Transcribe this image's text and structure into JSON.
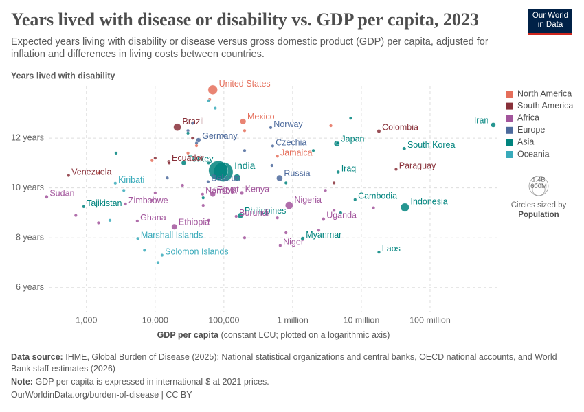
{
  "chart_data": {
    "type": "scatter",
    "title": "Years lived with disease or disability vs. GDP per capita, 2023",
    "subtitle": "Expected years living with disability or disease versus gross domestic product (GDP) per capita, adjusted for inflation and differences in living costs between countries.",
    "y_label": "Years lived with disability",
    "x_label": "GDP per capita",
    "x_label_note": "(constant LCU; plotted on a logarithmic axis)",
    "log_x": true,
    "grid": true,
    "legend_position": "right",
    "xlim": [
      290,
      1000000000
    ],
    "xticks": [
      {
        "value": 1000,
        "label": "1,000"
      },
      {
        "value": 10000,
        "label": "10,000"
      },
      {
        "value": 100000,
        "label": "100,000"
      },
      {
        "value": 1000000,
        "label": "1 million"
      },
      {
        "value": 10000000,
        "label": "10 million"
      },
      {
        "value": 100000000,
        "label": "100 million"
      }
    ],
    "ylim": [
      5,
      14.1
    ],
    "yticks": [
      {
        "value": 6,
        "label": "6 years"
      },
      {
        "value": 8,
        "label": "8 years"
      },
      {
        "value": 10,
        "label": "10 years"
      },
      {
        "value": 12,
        "label": "12 years"
      }
    ],
    "size_legend": [
      {
        "value": 1400000000,
        "label": "1.4B"
      },
      {
        "value": 600000000,
        "label": "600M"
      }
    ],
    "size_legend_title": "Circles sized by",
    "size_variable": "Population",
    "series": [
      {
        "name": "North America",
        "color": "#e56e5a",
        "x": [
          69000,
          190000,
          600000,
          62000,
          40000,
          30000,
          200000,
          9000,
          3600000,
          1500
        ],
        "values": [
          13.94,
          12.67,
          11.28,
          13.55,
          11.7,
          11.4,
          12.3,
          11.1,
          12.5,
          10.6
        ],
        "sizes": [
          340000000,
          130000000,
          2800000,
          40000000,
          3000000,
          6000000,
          5000000,
          10000000,
          1000000,
          11000000
        ],
        "labels": [
          "United States",
          "Mexico",
          "Jamaica",
          null,
          null,
          null,
          null,
          null,
          null,
          null
        ]
      },
      {
        "name": "South America",
        "color": "#883039",
        "x": [
          21000,
          18000000,
          15800,
          550,
          32000000,
          35000,
          4000000,
          16000,
          10000
        ],
        "values": [
          12.44,
          12.28,
          11.06,
          10.5,
          10.75,
          12.0,
          10.2,
          11.0,
          11.2
        ],
        "sizes": [
          216000000,
          52000000,
          18000000,
          28000000,
          6800000,
          10000000,
          5000000,
          3000000,
          10000000
        ],
        "labels": [
          "Brazil",
          "Colombia",
          "Ecuador",
          "Venezuela",
          "Paraguay",
          null,
          null,
          null,
          null
        ]
      },
      {
        "name": "Africa",
        "color": "#a2559c",
        "x": [
          263,
          3700,
          49000,
          69000,
          182000,
          890000,
          5500,
          19000,
          151000,
          2800000,
          660000,
          10000,
          50000,
          3000000,
          700,
          1500,
          25000,
          600000,
          2400000,
          60000,
          200000,
          800000,
          9000,
          15000000,
          4000000
        ],
        "values": [
          9.64,
          9.36,
          9.75,
          9.75,
          9.8,
          9.3,
          8.67,
          8.44,
          8.86,
          8.75,
          7.69,
          9.8,
          9.3,
          9.9,
          8.9,
          8.6,
          10.1,
          8.8,
          8.3,
          8.7,
          8.0,
          8.2,
          9.5,
          9.2,
          9.1
        ],
        "sizes": [
          48000000,
          16000000,
          2600000,
          112000000,
          55000000,
          223000000,
          34000000,
          126000000,
          13000000,
          48000000,
          27000000,
          4000000,
          20000000,
          5000000,
          10000000,
          20000000,
          40000000,
          30000000,
          30000000,
          10000000,
          10000000,
          20000000,
          10000000,
          3000000,
          20000000
        ],
        "labels": [
          "Sudan",
          "Zimbabwe",
          "Namibia",
          "Egypt",
          "Kenya",
          "Nigeria",
          "Ghana",
          "Ethiopia",
          "Burundi",
          "Uganda",
          "Niger",
          null,
          null,
          null,
          null,
          null,
          null,
          null,
          null,
          null,
          null,
          null,
          null,
          null,
          null
        ]
      },
      {
        "name": "Europe",
        "color": "#4c6a9c",
        "x": [
          42600,
          480000,
          513000,
          59000,
          646000,
          100000,
          30000,
          40000,
          500000,
          35000,
          200000,
          15000
        ],
        "values": [
          11.92,
          12.42,
          11.69,
          10.25,
          10.39,
          12.1,
          12.3,
          11.8,
          10.9,
          12.6,
          11.5,
          10.4
        ],
        "sizes": [
          84000000,
          5500000,
          10800000,
          9200000,
          144000000,
          20000000,
          10000000,
          10000000,
          10000000,
          8000000,
          3000000,
          5000000
        ],
        "labels": [
          "Germany",
          "Norway",
          "Czechia",
          "Belarus",
          "Russia",
          null,
          null,
          null,
          null,
          null,
          null,
          null
        ]
      },
      {
        "name": "Asia",
        "color": "#00847e",
        "x": [
          98000,
          26000,
          4400000,
          830000000,
          42000000,
          4600000,
          174000,
          8100000,
          43000000,
          1400000,
          18000000,
          912,
          83000,
          155000,
          7000000,
          2700,
          50000,
          30000,
          4500000,
          2000000,
          800000,
          60000,
          5000000
        ],
        "values": [
          10.64,
          11.0,
          11.78,
          12.53,
          11.58,
          10.64,
          8.89,
          9.53,
          9.22,
          7.97,
          7.42,
          9.25,
          10.7,
          10.42,
          12.8,
          11.4,
          9.6,
          12.2,
          11.8,
          11.5,
          10.2,
          11.0,
          9.0
        ],
        "sizes": [
          1430000000,
          85000000,
          124000000,
          89000000,
          51000000,
          45000000,
          117000000,
          17000000,
          277000000,
          54000000,
          7600000,
          10000000,
          1410000000,
          170000000,
          5000000,
          5000000,
          5000000,
          3000000,
          5000000,
          10000000,
          5000000,
          10000000,
          3000000
        ],
        "labels": [
          "India",
          "Turkey",
          "Japan",
          "Iran",
          "South Korea",
          "Iraq",
          "Philippines",
          "Cambodia",
          "Indonesia",
          "Myanmar",
          "Laos",
          "Tajikistan",
          null,
          null,
          null,
          null,
          null,
          null,
          null,
          null,
          null,
          null,
          null
        ]
      },
      {
        "name": "Oceania",
        "color": "#38aaba",
        "x": [
          2630,
          5600,
          12600,
          2200,
          7000,
          11000,
          60000,
          75000,
          3500
        ],
        "values": [
          10.19,
          7.97,
          7.3,
          8.7,
          7.5,
          7.0,
          13.5,
          13.2,
          9.9
        ],
        "sizes": [
          130000,
          42000,
          740000,
          1000000,
          300000,
          100000,
          26000000,
          5000000,
          100000
        ],
        "labels": [
          "Kiribati",
          "Marshall Islands",
          "Solomon Islands",
          null,
          null,
          null,
          null,
          null,
          null
        ]
      }
    ]
  },
  "logo": [
    "Our World",
    "in Data"
  ],
  "footer": {
    "source_label": "Data source:",
    "source": "IHME, Global Burden of Disease (2025); National statistical organizations and central banks, OECD national accounts, and World Bank staff estimates (2026)",
    "note_label": "Note:",
    "note": "GDP per capita is expressed in international-$ at 2021 prices.",
    "url": "OurWorldinData.org/burden-of-disease | CC BY"
  }
}
